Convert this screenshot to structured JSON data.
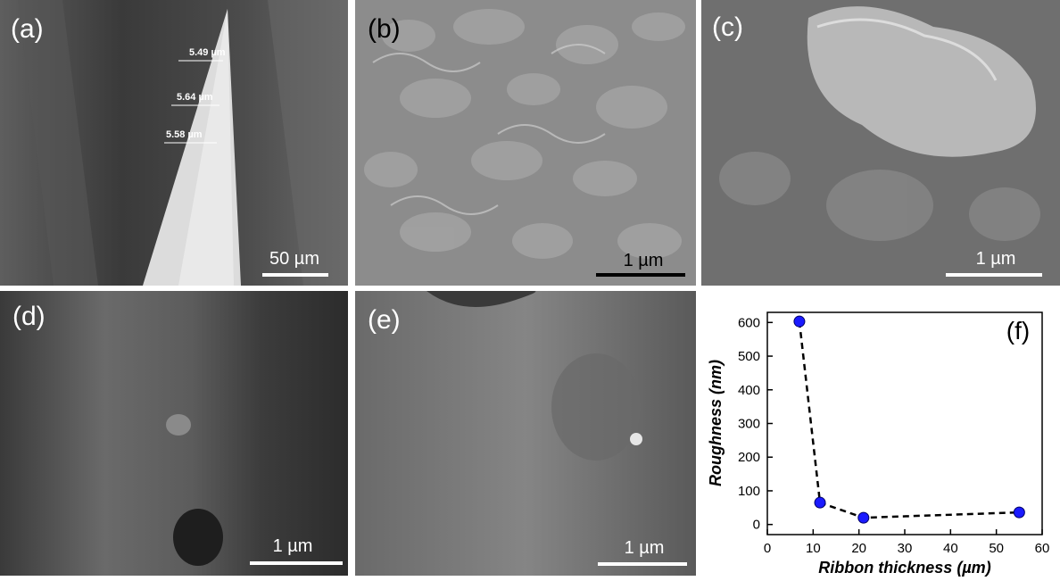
{
  "panels": {
    "a": {
      "label": "(a)",
      "scale_bar": "50 µm",
      "thickness_labels": [
        "5.49 µm",
        "5.64 µm",
        "5.58 µm"
      ]
    },
    "b": {
      "label": "(b)",
      "scale_bar": "1 µm"
    },
    "c": {
      "label": "(c)",
      "scale_bar": "1 µm"
    },
    "d": {
      "label": "(d)",
      "scale_bar": "1 µm"
    },
    "e": {
      "label": "(e)",
      "scale_bar": "1 µm"
    },
    "f": {
      "label": "(f)"
    }
  },
  "chart_data": {
    "type": "line",
    "title": "",
    "xlabel": "Ribbon thickness (µm)",
    "ylabel": "Roughness (nm)",
    "xlim": [
      0,
      60
    ],
    "ylim": [
      -30,
      630
    ],
    "xticks": [
      0,
      10,
      20,
      30,
      40,
      50,
      60
    ],
    "yticks": [
      0,
      100,
      200,
      300,
      400,
      500,
      600
    ],
    "grid": false,
    "series": [
      {
        "x": [
          7,
          11.5,
          21,
          55
        ],
        "y": [
          603,
          65,
          20,
          36
        ]
      }
    ],
    "colors": {
      "marker": "#1a1aff",
      "line": "#000000"
    }
  }
}
